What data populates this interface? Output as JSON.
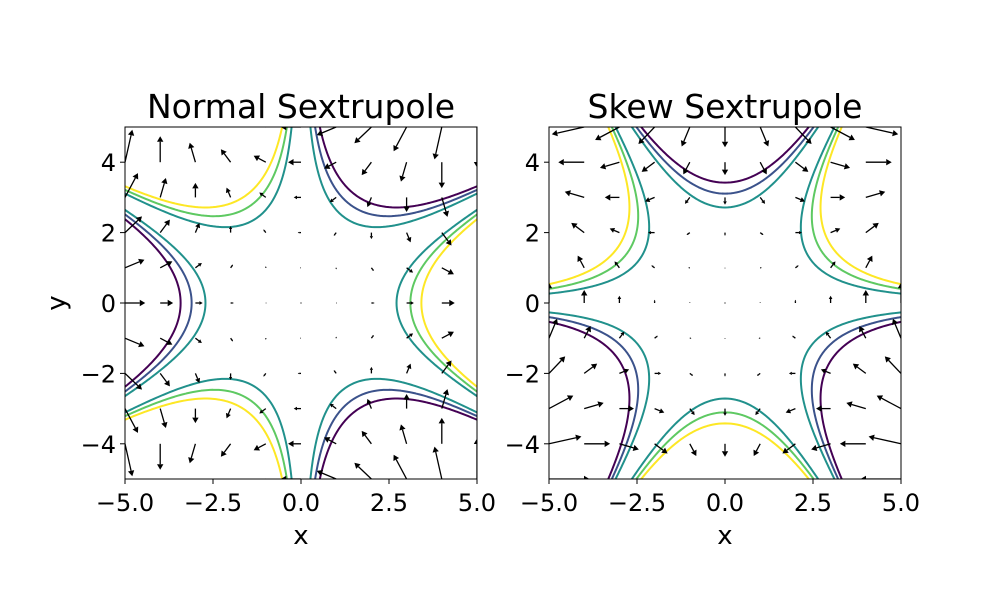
{
  "chart_data": [
    {
      "type": "contour+quiver",
      "title": "Normal Sextrupole",
      "xlabel": "x",
      "ylabel": "y",
      "xlim": [
        -5,
        5
      ],
      "ylim": [
        -5,
        5
      ],
      "xticks": [
        "−5.0",
        "−2.5",
        "0.0",
        "2.5",
        "5.0"
      ],
      "yticks": [
        "−4",
        "−2",
        "0",
        "2",
        "4"
      ],
      "x_tick_values": [
        -5,
        -2.5,
        0,
        2.5,
        5
      ],
      "y_tick_values": [
        -4,
        -2,
        0,
        2,
        4
      ],
      "field": "potential = x^3 - 3*x*y^2",
      "contour_levels": [
        -40,
        -30,
        -20,
        20,
        30,
        40
      ],
      "contour_colors": [
        "#440154",
        "#3b528b",
        "#21918c",
        "#21918c",
        "#5ec962",
        "#fde725"
      ],
      "quiver": "gradient of potential on 11x11 grid from -5 to 5",
      "grid": false
    },
    {
      "type": "contour+quiver",
      "title": "Skew Sextrupole",
      "xlabel": "x",
      "ylabel": "",
      "xlim": [
        -5,
        5
      ],
      "ylim": [
        -5,
        5
      ],
      "xticks": [
        "−5.0",
        "−2.5",
        "0.0",
        "2.5",
        "5.0"
      ],
      "yticks": [
        "−4",
        "−2",
        "0",
        "2",
        "4"
      ],
      "x_tick_values": [
        -5,
        -2.5,
        0,
        2.5,
        5
      ],
      "y_tick_values": [
        -4,
        -2,
        0,
        2,
        4
      ],
      "field": "potential = 3*x^2*y - y^3",
      "contour_levels": [
        -40,
        -30,
        -20,
        20,
        30,
        40
      ],
      "contour_colors": [
        "#440154",
        "#3b528b",
        "#21918c",
        "#21918c",
        "#5ec962",
        "#fde725"
      ],
      "quiver": "gradient of potential on 11x11 grid from -5 to 5",
      "grid": false
    }
  ]
}
